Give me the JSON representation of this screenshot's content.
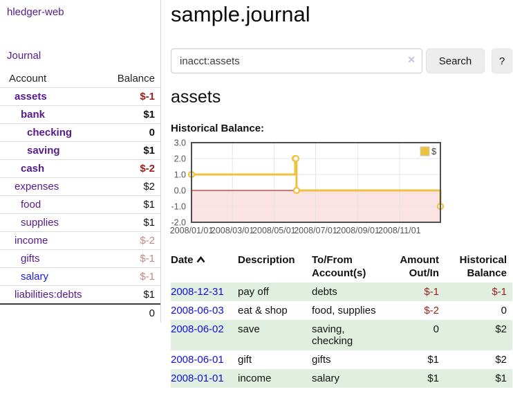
{
  "app": {
    "brand": "hledger-web",
    "nav_journal": "Journal"
  },
  "colors": {
    "link_purple": "#551a8b",
    "link_blue": "#1a1ae0",
    "negative_strong": "#9d1c1c",
    "negative_soft": "#c48888",
    "row_green": "#e0efe0",
    "series_gold": "#edc240"
  },
  "sidebar": {
    "columns": {
      "account": "Account",
      "balance": "Balance"
    },
    "accounts": [
      {
        "name": "assets",
        "level": 1,
        "bold": true,
        "name_color": "purple",
        "balance": "$-1",
        "balance_style": "neg-strong"
      },
      {
        "name": "bank",
        "level": 2,
        "bold": true,
        "name_color": "purple",
        "balance": "$1",
        "balance_style": ""
      },
      {
        "name": "checking",
        "level": 3,
        "bold": true,
        "name_color": "purple",
        "balance": "0",
        "balance_style": ""
      },
      {
        "name": "saving",
        "level": 3,
        "bold": true,
        "name_color": "purple",
        "balance": "$1",
        "balance_style": ""
      },
      {
        "name": "cash",
        "level": 2,
        "bold": true,
        "name_color": "purple",
        "balance": "$-2",
        "balance_style": "neg-strong"
      },
      {
        "name": "expenses",
        "level": 1,
        "bold": false,
        "name_color": "purple",
        "balance": "$2",
        "balance_style": ""
      },
      {
        "name": "food",
        "level": 2,
        "bold": false,
        "name_color": "purple",
        "balance": "$1",
        "balance_style": ""
      },
      {
        "name": "supplies",
        "level": 2,
        "bold": false,
        "name_color": "purple",
        "balance": "$1",
        "balance_style": ""
      },
      {
        "name": "income",
        "level": 1,
        "bold": false,
        "name_color": "purple",
        "balance": "$-2",
        "balance_style": "neg-soft"
      },
      {
        "name": "gifts",
        "level": 2,
        "bold": false,
        "name_color": "purple",
        "balance": "$-1",
        "balance_style": "neg-soft"
      },
      {
        "name": "salary",
        "level": 2,
        "bold": false,
        "name_color": "blue",
        "balance": "$-1",
        "balance_style": "neg-soft"
      },
      {
        "name": "liabilities:debts",
        "level": 1,
        "bold": false,
        "name_color": "purple",
        "balance": "$1",
        "balance_style": ""
      }
    ],
    "total": "0"
  },
  "header": {
    "title": "sample.journal"
  },
  "search": {
    "value": "inacct:assets",
    "clear_glyph": "✕",
    "button_label": "Search",
    "help_label": "?"
  },
  "account_page": {
    "title": "assets",
    "chart_label": "Historical Balance:"
  },
  "chart_data": {
    "type": "line",
    "title": "Historical Balance",
    "series": [
      {
        "name": "$",
        "color": "#edc240",
        "step": true,
        "points": [
          [
            "2008-01-01",
            1
          ],
          [
            "2008-06-01",
            2
          ],
          [
            "2008-06-02",
            2
          ],
          [
            "2008-06-03",
            0
          ],
          [
            "2008-12-31",
            -1
          ]
        ]
      }
    ],
    "ylim": [
      -2,
      3
    ],
    "yticks": [
      "3.0",
      "2.0",
      "1.0",
      "0.0",
      "-1.0",
      "-2.0"
    ],
    "xticks": [
      "2008/01/01",
      "2008/03/01",
      "2008/05/01",
      "2008/07/01",
      "2008/09/01",
      "2008/11/01"
    ],
    "x_range": [
      "2008-01-01",
      "2008-12-31"
    ],
    "grid": true,
    "legend_position": "top-right",
    "zero_line_color": "#a30000",
    "negative_fill": "#fbe3e3"
  },
  "register": {
    "columns": {
      "date": "Date",
      "description": "Description",
      "accounts": "To/From Account(s)",
      "amount": "Amount Out/In",
      "balance": "Historical Balance"
    },
    "rows": [
      {
        "date": "2008-12-31",
        "description": "pay off",
        "accounts": "debts",
        "amount": "$-1",
        "amount_negative": true,
        "balance": "$-1",
        "balance_negative": true
      },
      {
        "date": "2008-06-03",
        "description": "eat & shop",
        "accounts": "food, supplies",
        "amount": "$-2",
        "amount_negative": true,
        "balance": "0",
        "balance_negative": false
      },
      {
        "date": "2008-06-02",
        "description": "save",
        "accounts": "saving, checking",
        "amount": "0",
        "amount_negative": false,
        "balance": "$2",
        "balance_negative": false
      },
      {
        "date": "2008-06-01",
        "description": "gift",
        "accounts": "gifts",
        "amount": "$1",
        "amount_negative": false,
        "balance": "$2",
        "balance_negative": false
      },
      {
        "date": "2008-01-01",
        "description": "income",
        "accounts": "salary",
        "amount": "$1",
        "amount_negative": false,
        "balance": "$1",
        "balance_negative": false
      }
    ]
  }
}
